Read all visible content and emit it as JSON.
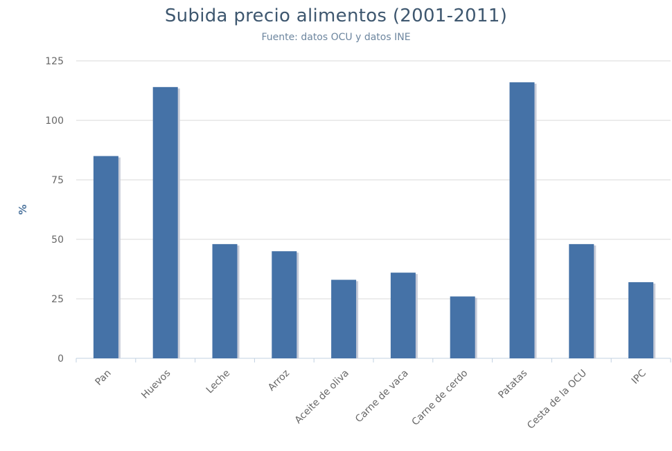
{
  "chart_data": {
    "type": "bar",
    "title": "Subida precio alimentos (2001-2011)",
    "subtitle": "Fuente: datos OCU y datos INE",
    "xlabel": "",
    "ylabel": "%",
    "categories": [
      "Pan",
      "Huevos",
      "Leche",
      "Arroz",
      "Aceite de oliva",
      "Carne de vaca",
      "Carne de cerdo",
      "Patatas",
      "Cesta de la OCU",
      "IPC"
    ],
    "values": [
      85,
      114,
      48,
      45,
      33,
      36,
      26,
      116,
      48,
      32
    ],
    "ylim": [
      0,
      125
    ],
    "yticks": [
      0,
      25,
      50,
      75,
      100,
      125
    ],
    "grid": true,
    "legend": "none",
    "colors": {
      "bar": "#4572a7",
      "bar_shadow": "#c8ccd8",
      "grid": "#d8d8d8",
      "axis": "#c0d0e0"
    }
  }
}
